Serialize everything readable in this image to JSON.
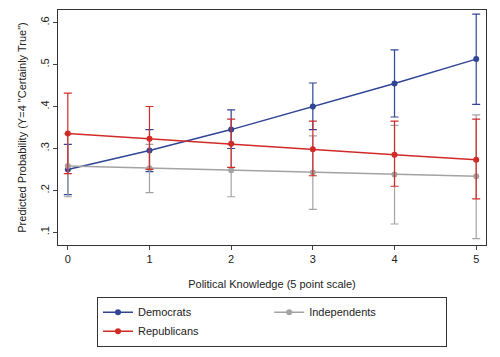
{
  "chart_data": {
    "type": "line",
    "x_label": "Political Knowledge (5 point scale)",
    "y_label": "Predicted Probability (Y=4 \"Certainly True\")",
    "x": [
      0,
      1,
      2,
      3,
      4,
      5
    ],
    "xlim": [
      -0.12,
      5.12
    ],
    "xticks": [
      0,
      1,
      2,
      3,
      4,
      5
    ],
    "ylim": [
      0.07,
      0.63
    ],
    "yticks": [
      {
        "value": 0.1,
        "label": ".1"
      },
      {
        "value": 0.2,
        "label": ".2"
      },
      {
        "value": 0.3,
        "label": ".3"
      },
      {
        "value": 0.4,
        "label": ".4"
      },
      {
        "value": 0.5,
        "label": ".5"
      },
      {
        "value": 0.6,
        "label": ".6"
      }
    ],
    "grid": false,
    "legend": "bottom",
    "marker": "circle",
    "series": [
      {
        "name": "Democrats",
        "color": "#2f4596",
        "values": [
          0.25,
          0.295,
          0.345,
          0.4,
          0.455,
          0.513
        ],
        "lower": [
          0.19,
          0.245,
          0.3,
          0.345,
          0.375,
          0.405
        ],
        "upper": [
          0.31,
          0.345,
          0.392,
          0.456,
          0.535,
          0.62
        ]
      },
      {
        "name": "Independents",
        "color": "#a3a3a3",
        "values": [
          0.258,
          0.253,
          0.248,
          0.243,
          0.238,
          0.234
        ],
        "lower": [
          0.185,
          0.195,
          0.185,
          0.155,
          0.12,
          0.085
        ],
        "upper": [
          0.335,
          0.31,
          0.31,
          0.33,
          0.355,
          0.38
        ]
      },
      {
        "name": "Republicans",
        "color": "#d02b27",
        "values": [
          0.336,
          0.323,
          0.311,
          0.298,
          0.285,
          0.273
        ],
        "lower": [
          0.24,
          0.25,
          0.255,
          0.235,
          0.21,
          0.18
        ],
        "upper": [
          0.432,
          0.4,
          0.37,
          0.365,
          0.365,
          0.37
        ]
      }
    ]
  }
}
